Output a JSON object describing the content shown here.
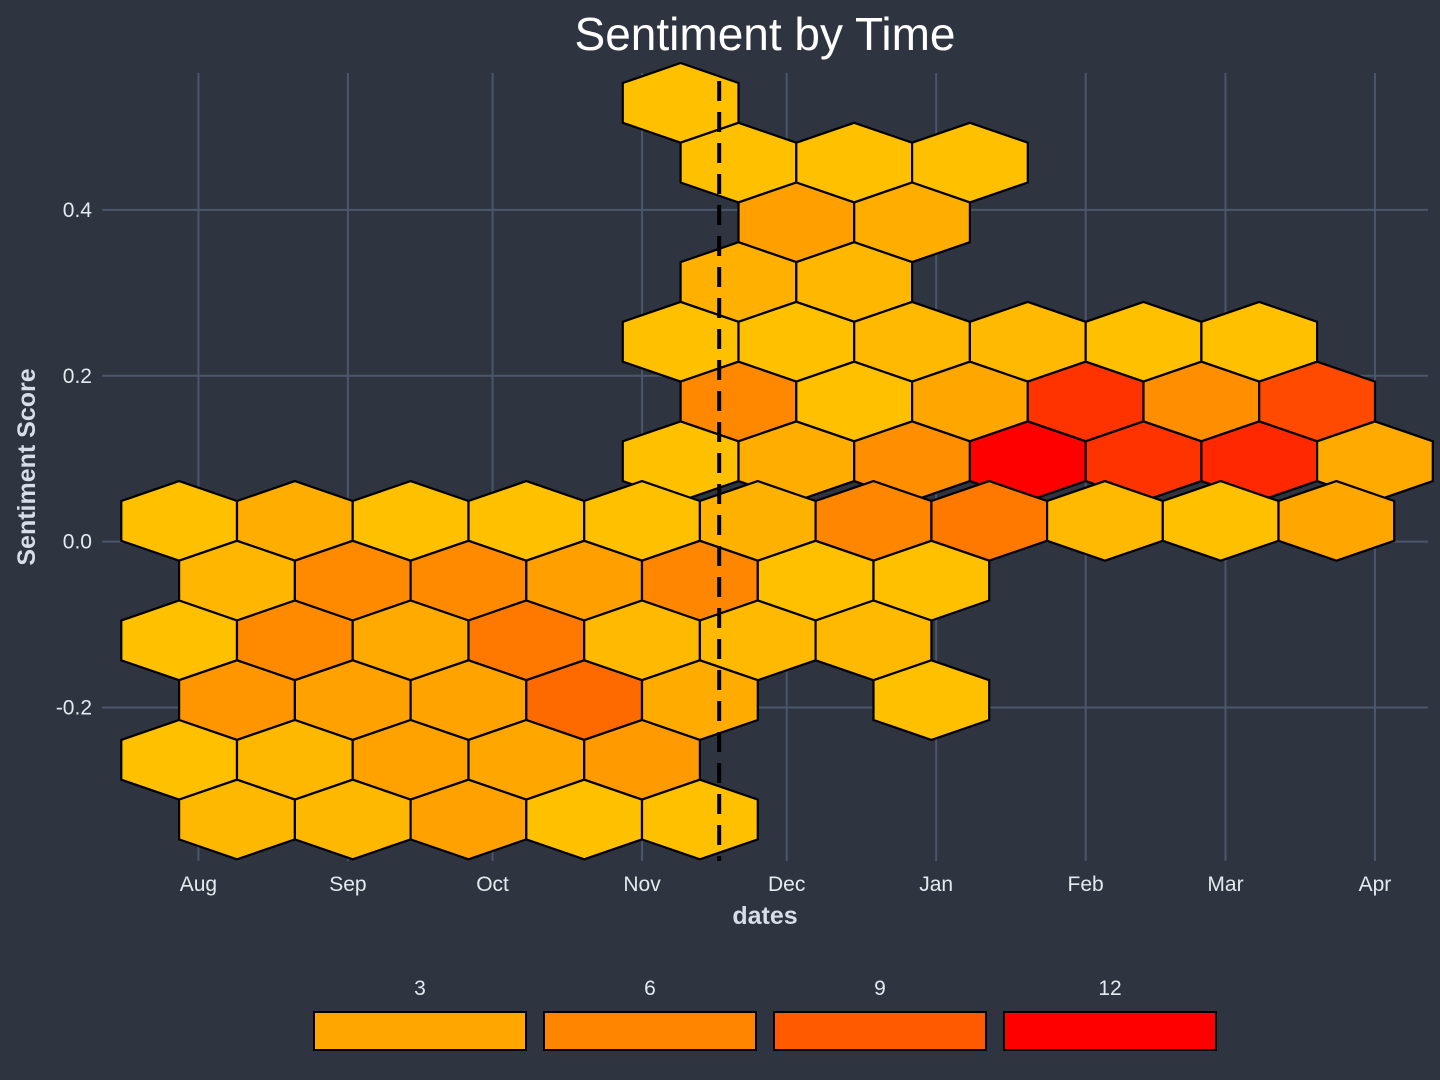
{
  "chart_data": {
    "type": "heatmap",
    "title": "Sentiment by Time",
    "xlabel": "dates",
    "ylabel": "Sentiment Score",
    "x_ticks": [
      "Aug",
      "Sep",
      "Oct",
      "Nov",
      "Dec",
      "Jan",
      "Feb",
      "Mar",
      "Apr"
    ],
    "x_tick_dates": [
      "2019-08-01",
      "2019-09-01",
      "2019-10-01",
      "2019-11-01",
      "2019-12-01",
      "2020-01-01",
      "2020-02-01",
      "2020-03-01",
      "2020-04-01"
    ],
    "x_range": [
      "2019-07-12",
      "2020-04-12"
    ],
    "y_ticks": [
      0.4,
      0.2,
      0.0,
      -0.2
    ],
    "y_tick_labels": [
      "0.4",
      "0.2",
      "0.0",
      "-0.2"
    ],
    "ylim": [
      -0.385,
      0.565
    ],
    "grid": true,
    "reference_line": {
      "x": "2019-11-17",
      "style": "dashed"
    },
    "legend": {
      "title": "",
      "position": "bottom",
      "labels": [
        "3",
        "6",
        "9",
        "12"
      ],
      "colors": [
        "#ffa600",
        "#ff8400",
        "#ff5a00",
        "#ff0000"
      ]
    },
    "hexbins": [
      {
        "date": "2019-11-09",
        "score": 0.529,
        "count": 1,
        "color": "#ffc000"
      },
      {
        "date": "2019-11-21",
        "score": 0.457,
        "count": 1,
        "color": "#ffc000"
      },
      {
        "date": "2019-12-15",
        "score": 0.457,
        "count": 1,
        "color": "#ffc000"
      },
      {
        "date": "2020-01-08",
        "score": 0.457,
        "count": 1,
        "color": "#ffc000"
      },
      {
        "date": "2019-12-03",
        "score": 0.385,
        "count": 5,
        "color": "#ff9f00"
      },
      {
        "date": "2019-12-27",
        "score": 0.385,
        "count": 3,
        "color": "#ffae00"
      },
      {
        "date": "2019-11-21",
        "score": 0.313,
        "count": 3,
        "color": "#ffb000"
      },
      {
        "date": "2019-12-15",
        "score": 0.313,
        "count": 2,
        "color": "#ffb700"
      },
      {
        "date": "2019-11-09",
        "score": 0.241,
        "count": 1,
        "color": "#ffc000"
      },
      {
        "date": "2019-12-03",
        "score": 0.241,
        "count": 1,
        "color": "#ffc000"
      },
      {
        "date": "2019-12-27",
        "score": 0.241,
        "count": 2,
        "color": "#ffb900"
      },
      {
        "date": "2020-01-20",
        "score": 0.241,
        "count": 2,
        "color": "#ffb900"
      },
      {
        "date": "2020-02-13",
        "score": 0.241,
        "count": 1,
        "color": "#ffc000"
      },
      {
        "date": "2020-03-08",
        "score": 0.241,
        "count": 1,
        "color": "#ffc000"
      },
      {
        "date": "2019-11-21",
        "score": 0.169,
        "count": 7,
        "color": "#ff8800"
      },
      {
        "date": "2019-12-15",
        "score": 0.169,
        "count": 1,
        "color": "#ffc000"
      },
      {
        "date": "2020-01-08",
        "score": 0.169,
        "count": 4,
        "color": "#ffa600"
      },
      {
        "date": "2020-02-01",
        "score": 0.169,
        "count": 12,
        "color": "#ff3300"
      },
      {
        "date": "2020-02-25",
        "score": 0.169,
        "count": 6,
        "color": "#ff8f00"
      },
      {
        "date": "2020-03-20",
        "score": 0.169,
        "count": 11,
        "color": "#ff4a00"
      },
      {
        "date": "2019-11-09",
        "score": 0.097,
        "count": 1,
        "color": "#ffc000"
      },
      {
        "date": "2019-12-03",
        "score": 0.097,
        "count": 3,
        "color": "#ffae00"
      },
      {
        "date": "2019-12-27",
        "score": 0.097,
        "count": 6,
        "color": "#ff8f00"
      },
      {
        "date": "2020-01-20",
        "score": 0.097,
        "count": 14,
        "color": "#ff0000"
      },
      {
        "date": "2020-02-13",
        "score": 0.097,
        "count": 12,
        "color": "#ff3300"
      },
      {
        "date": "2020-03-08",
        "score": 0.097,
        "count": 13,
        "color": "#ff2800"
      },
      {
        "date": "2020-04-01",
        "score": 0.097,
        "count": 4,
        "color": "#ffaa00"
      },
      {
        "date": "2019-07-28",
        "score": 0.025,
        "count": 1,
        "color": "#ffc000"
      },
      {
        "date": "2019-08-21",
        "score": 0.025,
        "count": 3,
        "color": "#ffae00"
      },
      {
        "date": "2019-09-14",
        "score": 0.025,
        "count": 1,
        "color": "#ffc000"
      },
      {
        "date": "2019-10-08",
        "score": 0.025,
        "count": 1,
        "color": "#ffc000"
      },
      {
        "date": "2019-11-01",
        "score": 0.025,
        "count": 1,
        "color": "#ffc000"
      },
      {
        "date": "2019-11-25",
        "score": 0.025,
        "count": 3,
        "color": "#ffb100"
      },
      {
        "date": "2019-12-19",
        "score": 0.025,
        "count": 7,
        "color": "#ff8600"
      },
      {
        "date": "2020-01-12",
        "score": 0.025,
        "count": 8,
        "color": "#ff7800"
      },
      {
        "date": "2020-02-05",
        "score": 0.025,
        "count": 2,
        "color": "#ffb900"
      },
      {
        "date": "2020-02-29",
        "score": 0.025,
        "count": 1,
        "color": "#ffc000"
      },
      {
        "date": "2020-03-24",
        "score": 0.025,
        "count": 4,
        "color": "#ffa600"
      },
      {
        "date": "2019-08-09",
        "score": -0.047,
        "count": 2,
        "color": "#ffb600"
      },
      {
        "date": "2019-09-02",
        "score": -0.047,
        "count": 6,
        "color": "#ff8a00"
      },
      {
        "date": "2019-09-26",
        "score": -0.047,
        "count": 6,
        "color": "#ff8a00"
      },
      {
        "date": "2019-10-20",
        "score": -0.047,
        "count": 4,
        "color": "#ffa000"
      },
      {
        "date": "2019-11-13",
        "score": -0.047,
        "count": 7,
        "color": "#ff8600"
      },
      {
        "date": "2019-12-07",
        "score": -0.047,
        "count": 1,
        "color": "#ffc000"
      },
      {
        "date": "2019-12-31",
        "score": -0.047,
        "count": 1,
        "color": "#ffc000"
      },
      {
        "date": "2019-07-28",
        "score": -0.119,
        "count": 1,
        "color": "#ffc000"
      },
      {
        "date": "2019-08-21",
        "score": -0.119,
        "count": 6,
        "color": "#ff8a00"
      },
      {
        "date": "2019-09-14",
        "score": -0.119,
        "count": 3,
        "color": "#ffaa00"
      },
      {
        "date": "2019-10-08",
        "score": -0.119,
        "count": 8,
        "color": "#ff7800"
      },
      {
        "date": "2019-11-01",
        "score": -0.119,
        "count": 2,
        "color": "#ffba00"
      },
      {
        "date": "2019-11-25",
        "score": -0.119,
        "count": 2,
        "color": "#ffba00"
      },
      {
        "date": "2019-12-19",
        "score": -0.119,
        "count": 2,
        "color": "#ffba00"
      },
      {
        "date": "2019-08-09",
        "score": -0.191,
        "count": 5,
        "color": "#ff9600"
      },
      {
        "date": "2019-09-02",
        "score": -0.191,
        "count": 4,
        "color": "#ffa100"
      },
      {
        "date": "2019-09-26",
        "score": -0.191,
        "count": 4,
        "color": "#ffa300"
      },
      {
        "date": "2019-10-20",
        "score": -0.191,
        "count": 9,
        "color": "#ff6a00"
      },
      {
        "date": "2019-11-13",
        "score": -0.191,
        "count": 3,
        "color": "#ffab00"
      },
      {
        "date": "2019-12-31",
        "score": -0.191,
        "count": 1,
        "color": "#ffc000"
      },
      {
        "date": "2019-07-28",
        "score": -0.263,
        "count": 1,
        "color": "#ffc000"
      },
      {
        "date": "2019-08-21",
        "score": -0.263,
        "count": 2,
        "color": "#ffb800"
      },
      {
        "date": "2019-09-14",
        "score": -0.263,
        "count": 4,
        "color": "#ffa200"
      },
      {
        "date": "2019-10-08",
        "score": -0.263,
        "count": 4,
        "color": "#ffa600"
      },
      {
        "date": "2019-11-01",
        "score": -0.263,
        "count": 5,
        "color": "#ff9a00"
      },
      {
        "date": "2019-08-09",
        "score": -0.335,
        "count": 2,
        "color": "#ffb800"
      },
      {
        "date": "2019-09-02",
        "score": -0.335,
        "count": 2,
        "color": "#ffb800"
      },
      {
        "date": "2019-09-26",
        "score": -0.335,
        "count": 4,
        "color": "#ffa100"
      },
      {
        "date": "2019-10-20",
        "score": -0.335,
        "count": 1,
        "color": "#ffc000"
      },
      {
        "date": "2019-11-13",
        "score": -0.335,
        "count": 1,
        "color": "#ffc000"
      }
    ]
  }
}
